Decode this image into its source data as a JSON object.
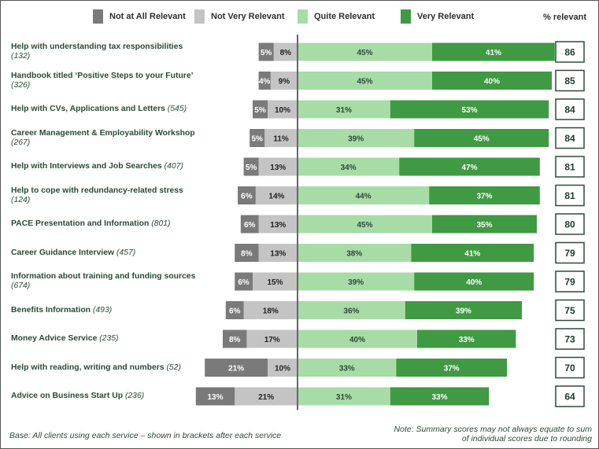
{
  "chart_data": {
    "type": "bar",
    "orientation": "horizontal-diverging",
    "legend": [
      {
        "name": "Not at All Relevant",
        "color": "#7a7a7a"
      },
      {
        "name": "Not Very Relevant",
        "color": "#c4c4c4"
      },
      {
        "name": "Quite Relevant",
        "color": "#a8dca6"
      },
      {
        "name": "Very Relevant",
        "color": "#3f9a43"
      }
    ],
    "summary_header": "% relevant",
    "rows": [
      {
        "label": "Help with understanding tax responsibilities",
        "count": "(132)",
        "not_at_all": 5,
        "not_very": 8,
        "quite": 45,
        "very": 41,
        "relevant": 86
      },
      {
        "label": "Handbook titled ‘Positive Steps to your Future’",
        "count": "(326)",
        "not_at_all": 4,
        "not_very": 9,
        "quite": 45,
        "very": 40,
        "relevant": 85
      },
      {
        "label": "Help with CVs, Applications and Letters",
        "count": "(545)",
        "not_at_all": 5,
        "not_very": 10,
        "quite": 31,
        "very": 53,
        "relevant": 84
      },
      {
        "label": "Career Management & Employability Workshop",
        "count": "(267)",
        "not_at_all": 5,
        "not_very": 11,
        "quite": 39,
        "very": 45,
        "relevant": 84
      },
      {
        "label": "Help with Interviews and Job Searches",
        "count": "(407)",
        "not_at_all": 5,
        "not_very": 13,
        "quite": 34,
        "very": 47,
        "relevant": 81
      },
      {
        "label": "Help to cope with redundancy-related stress",
        "count": "(124)",
        "not_at_all": 6,
        "not_very": 14,
        "quite": 44,
        "very": 37,
        "relevant": 81
      },
      {
        "label": "PACE Presentation and Information",
        "count": "(801)",
        "not_at_all": 6,
        "not_very": 13,
        "quite": 45,
        "very": 35,
        "relevant": 80
      },
      {
        "label": "Career Guidance Interview",
        "count": "(457)",
        "not_at_all": 8,
        "not_very": 13,
        "quite": 38,
        "very": 41,
        "relevant": 79
      },
      {
        "label": "Information about training and funding sources",
        "count": "(674)",
        "not_at_all": 6,
        "not_very": 15,
        "quite": 39,
        "very": 40,
        "relevant": 79
      },
      {
        "label": "Benefits Information",
        "count": "(493)",
        "not_at_all": 6,
        "not_very": 18,
        "quite": 36,
        "very": 39,
        "relevant": 75
      },
      {
        "label": "Money Advice Service",
        "count": "(235)",
        "not_at_all": 8,
        "not_very": 17,
        "quite": 40,
        "very": 33,
        "relevant": 73
      },
      {
        "label": "Help with reading, writing and numbers",
        "count": "(52)",
        "not_at_all": 21,
        "not_very": 10,
        "quite": 33,
        "very": 37,
        "relevant": 70
      },
      {
        "label": "Advice on Business Start Up",
        "count": "(236)",
        "not_at_all": 13,
        "not_very": 21,
        "quite": 31,
        "very": 33,
        "relevant": 64
      }
    ]
  },
  "footer": {
    "base_note": "Base: All clients using each service – shown in brackets after each service",
    "summary_note": "Note: Summary scores may not always equate to sum of individual scores due to rounding"
  }
}
